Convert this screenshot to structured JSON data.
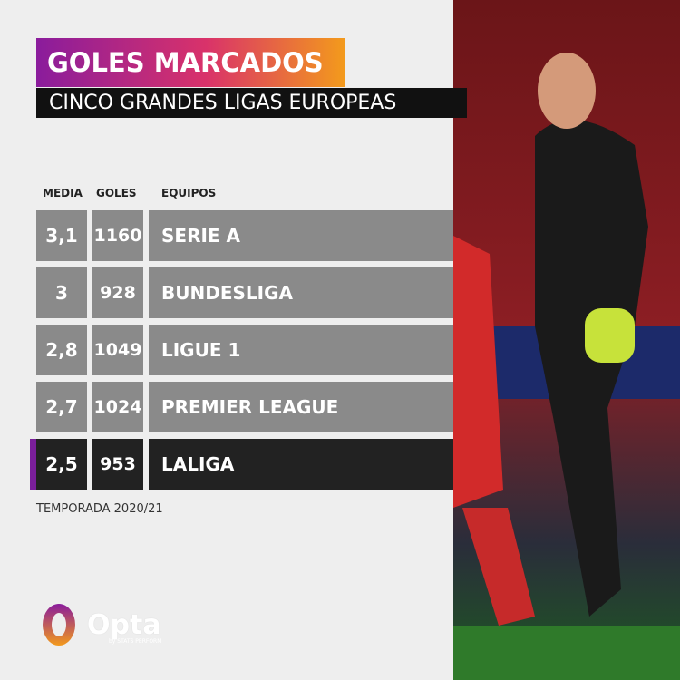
{
  "header": {
    "title": "GOLES MARCADOS",
    "subtitle": "CINCO GRANDES LIGAS EUROPEAS"
  },
  "table": {
    "columns": [
      "MEDIA",
      "GOLES",
      "EQUIPOS"
    ],
    "rows": [
      [
        "3,1",
        "1160",
        "SERIE A"
      ],
      [
        "3",
        "928",
        "BUNDESLIGA"
      ],
      [
        "2,8",
        "1049",
        "LIGUE 1"
      ],
      [
        "2,7",
        "1024",
        "PREMIER LEAGUE"
      ],
      [
        "2,5",
        "953",
        "LALIGA"
      ]
    ]
  },
  "footnote": "TEMPORADA 2020/21",
  "logo": {
    "name": "Opta",
    "tagline": "by STATS PERFORM"
  }
}
